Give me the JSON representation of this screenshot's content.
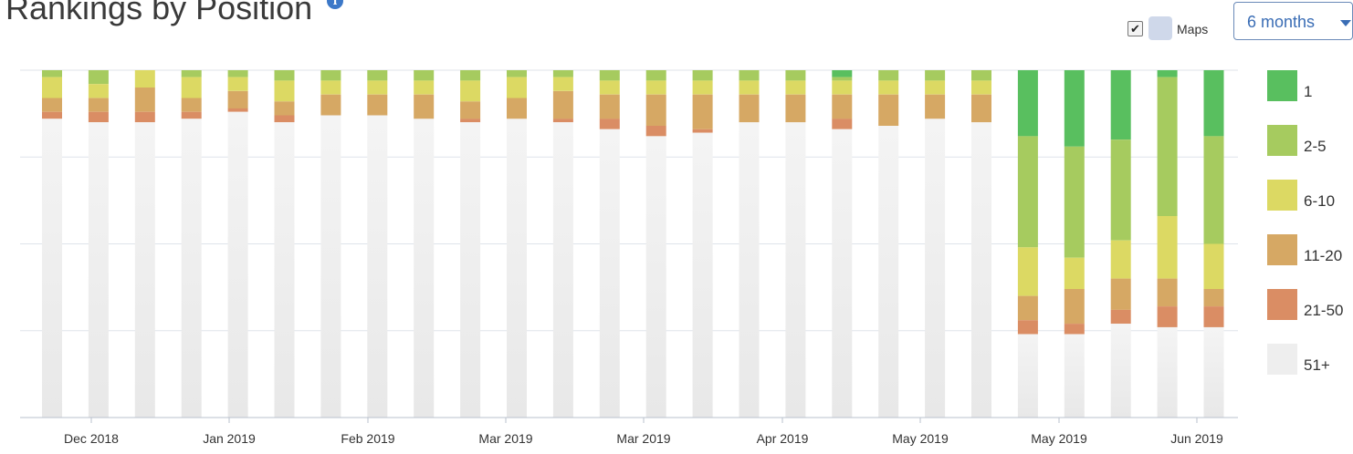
{
  "header": {
    "title": "Rankings by Position",
    "info_icon": "i"
  },
  "controls": {
    "maps_checked": true,
    "maps_check_glyph": "✔",
    "maps_label": "Maps",
    "range_value": "6 months"
  },
  "legend": [
    {
      "label": "1",
      "color": "#59bf5f"
    },
    {
      "label": "2-5",
      "color": "#a6cb5f"
    },
    {
      "label": "6-10",
      "color": "#dcd963"
    },
    {
      "label": "11-20",
      "color": "#d6a864"
    },
    {
      "label": "21-50",
      "color": "#da8d64"
    },
    {
      "label": "51+",
      "color": "#eeeeee"
    }
  ],
  "chart_data": {
    "type": "bar",
    "stacked": true,
    "grid": true,
    "y_axis_labels": false,
    "legend_position": "right",
    "x_tick_labels": [
      "Dec 2018",
      "Jan 2019",
      "Feb 2019",
      "Mar 2019",
      "Mar 2019",
      "Apr 2019",
      "May 2019",
      "May 2019",
      "Jun 2019"
    ],
    "series": [
      {
        "name": "1",
        "values": [
          0,
          0,
          0,
          0,
          0,
          0,
          0,
          0,
          0,
          0,
          0,
          0,
          0,
          0,
          0,
          0,
          0,
          2,
          0,
          0,
          0,
          19,
          22,
          20,
          2,
          19
        ]
      },
      {
        "name": "2-5",
        "values": [
          2,
          4,
          0,
          2,
          2,
          3,
          3,
          3,
          3,
          3,
          2,
          2,
          3,
          3,
          3,
          3,
          3,
          1,
          3,
          3,
          3,
          32,
          32,
          29,
          40,
          31
        ]
      },
      {
        "name": "6-10",
        "values": [
          6,
          4,
          5,
          6,
          4,
          6,
          4,
          4,
          4,
          6,
          6,
          4,
          4,
          4,
          4,
          4,
          4,
          4,
          4,
          4,
          4,
          14,
          9,
          11,
          18,
          13
        ]
      },
      {
        "name": "11-20",
        "values": [
          4,
          4,
          7,
          4,
          5,
          4,
          6,
          6,
          7,
          5,
          6,
          8,
          7,
          9,
          10,
          8,
          8,
          7,
          9,
          7,
          8,
          7,
          10,
          9,
          8,
          5
        ]
      },
      {
        "name": "21-50",
        "values": [
          2,
          3,
          3,
          2,
          1,
          2,
          0,
          0,
          0,
          1,
          0,
          1,
          3,
          3,
          1,
          0,
          0,
          3,
          0,
          0,
          0,
          4,
          3,
          4,
          6,
          6
        ]
      },
      {
        "name": "51+",
        "values": [
          86,
          85,
          85,
          86,
          88,
          85,
          87,
          87,
          86,
          85,
          86,
          85,
          83,
          81,
          82,
          85,
          85,
          83,
          84,
          86,
          85,
          24,
          24,
          27,
          26,
          26
        ]
      }
    ]
  }
}
